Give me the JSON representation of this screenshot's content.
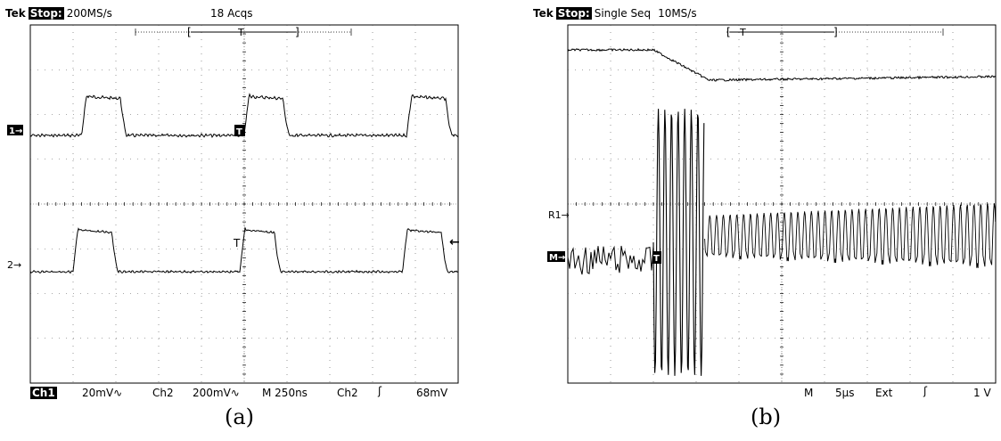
{
  "scopes": [
    {
      "caption": "(a)",
      "header": {
        "brand": "Tek",
        "status": "Stop:",
        "rate": "200MS/s",
        "acqs": "18 Acqs"
      },
      "markers": {
        "ch1": "1→",
        "ch2": "2→",
        "trig": "T",
        "trig_level": "←"
      },
      "footer": {
        "ch1": "Ch1",
        "ch1_scale": "20mV∿",
        "ch2": "Ch2",
        "ch2_scale": "200mV∿",
        "time": "M 250ns",
        "trig_src": "Ch2",
        "slope": "ʃ",
        "trig_level": "68mV"
      }
    },
    {
      "caption": "(b)",
      "header": {
        "brand": "Tek",
        "status": "Stop:",
        "mode": "Single Seq",
        "rate": "10MS/s"
      },
      "markers": {
        "ref": "R1→",
        "math": "M→",
        "trig": "T"
      },
      "footer": {
        "m": "M",
        "time": "5µs",
        "src": "Ext",
        "slope": "ʃ",
        "level": "1 V"
      }
    }
  ],
  "chart_data": [
    {
      "type": "line",
      "grid": "10 x 8 divisions",
      "series": [
        {
          "name": "Ch1",
          "color": "#000000",
          "pulses": [
            [
              0.12,
              0.21
            ],
            [
              0.5,
              0.59
            ],
            [
              0.88,
              0.97
            ]
          ]
        },
        {
          "name": "Ch2",
          "color": "#000000",
          "pulses": [
            [
              0.1,
              0.19
            ],
            [
              0.49,
              0.57
            ],
            [
              0.87,
              0.96
            ]
          ]
        }
      ]
    },
    {
      "type": "line",
      "grid": "10 x 8 divisions",
      "series": [
        {
          "name": "R1",
          "color": "#000000",
          "description_points": [
            [
              0.0,
              0.3
            ],
            [
              0.2,
              0.3
            ],
            [
              0.3,
              0.0
            ],
            [
              1.0,
              0.1
            ]
          ]
        },
        {
          "name": "M",
          "color": "#000000",
          "burst_start": 0.2,
          "burst_end": 0.32
        }
      ]
    }
  ]
}
